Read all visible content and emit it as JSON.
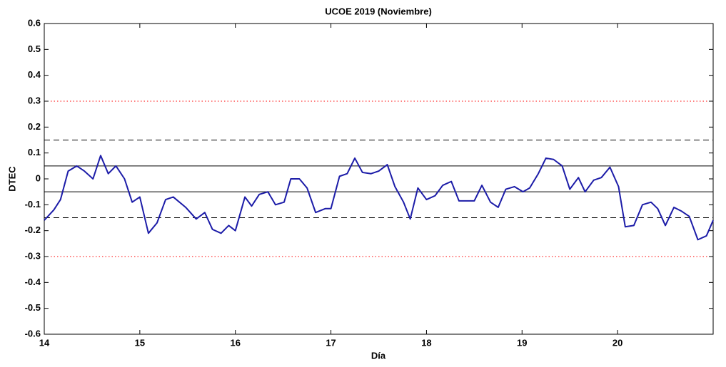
{
  "chart_data": {
    "type": "line",
    "title": "UCOE 2019 (Noviembre)",
    "x_label": "Día",
    "y_label": "DTEC",
    "xlim": [
      14,
      21
    ],
    "xticks": [
      14,
      15,
      16,
      17,
      18,
      19,
      20
    ],
    "ylim": [
      -0.6,
      0.6
    ],
    "yticks": [
      -0.6,
      -0.5,
      -0.4,
      -0.3,
      -0.2,
      -0.1,
      0,
      0.1,
      0.2,
      0.3,
      0.4,
      0.5,
      0.6
    ],
    "reference_lines": [
      {
        "value": 0.3,
        "style": "dotted",
        "color": "#ff0000"
      },
      {
        "value": -0.3,
        "style": "dotted",
        "color": "#ff0000"
      },
      {
        "value": 0.15,
        "style": "dashed",
        "color": "#000000"
      },
      {
        "value": -0.15,
        "style": "dashed",
        "color": "#000000"
      },
      {
        "value": 0.05,
        "style": "solid",
        "color": "#000000"
      },
      {
        "value": -0.05,
        "style": "solid",
        "color": "#000000"
      }
    ],
    "series": [
      {
        "color": "#1c1ca8",
        "x": [
          14.0,
          14.1,
          14.17,
          14.25,
          14.34,
          14.42,
          14.51,
          14.59,
          14.67,
          14.75,
          14.84,
          14.92,
          15.0,
          15.09,
          15.18,
          15.27,
          15.35,
          15.48,
          15.59,
          15.68,
          15.76,
          15.85,
          15.93,
          16.0,
          16.1,
          16.17,
          16.25,
          16.34,
          16.42,
          16.51,
          16.58,
          16.67,
          16.75,
          16.84,
          16.94,
          17.0,
          17.09,
          17.17,
          17.25,
          17.33,
          17.42,
          17.5,
          17.59,
          17.67,
          17.76,
          17.83,
          17.91,
          18.0,
          18.09,
          18.17,
          18.26,
          18.34,
          18.43,
          18.5,
          18.58,
          18.67,
          18.75,
          18.83,
          18.92,
          19.01,
          19.08,
          19.17,
          19.25,
          19.33,
          19.42,
          19.5,
          19.59,
          19.66,
          19.75,
          19.83,
          19.92,
          20.01,
          20.08,
          20.17,
          20.26,
          20.35,
          20.42,
          20.5,
          20.59,
          20.67,
          20.75,
          20.84,
          20.93,
          21.0
        ],
        "values": [
          -0.16,
          -0.12,
          -0.08,
          0.03,
          0.05,
          0.03,
          0.0,
          0.09,
          0.02,
          0.05,
          0.0,
          -0.09,
          -0.07,
          -0.21,
          -0.17,
          -0.08,
          -0.07,
          -0.11,
          -0.155,
          -0.13,
          -0.195,
          -0.21,
          -0.18,
          -0.2,
          -0.07,
          -0.105,
          -0.06,
          -0.05,
          -0.1,
          -0.09,
          0.0,
          0.0,
          -0.035,
          -0.13,
          -0.115,
          -0.115,
          0.01,
          0.02,
          0.08,
          0.025,
          0.02,
          0.03,
          0.055,
          -0.03,
          -0.09,
          -0.155,
          -0.035,
          -0.08,
          -0.065,
          -0.025,
          -0.01,
          -0.085,
          -0.085,
          -0.085,
          -0.025,
          -0.09,
          -0.11,
          -0.04,
          -0.03,
          -0.05,
          -0.035,
          0.02,
          0.08,
          0.075,
          0.05,
          -0.04,
          0.005,
          -0.05,
          -0.005,
          0.005,
          0.045,
          -0.03,
          -0.185,
          -0.18,
          -0.1,
          -0.09,
          -0.115,
          -0.18,
          -0.11,
          -0.125,
          -0.145,
          -0.235,
          -0.22,
          -0.16
        ]
      }
    ]
  }
}
